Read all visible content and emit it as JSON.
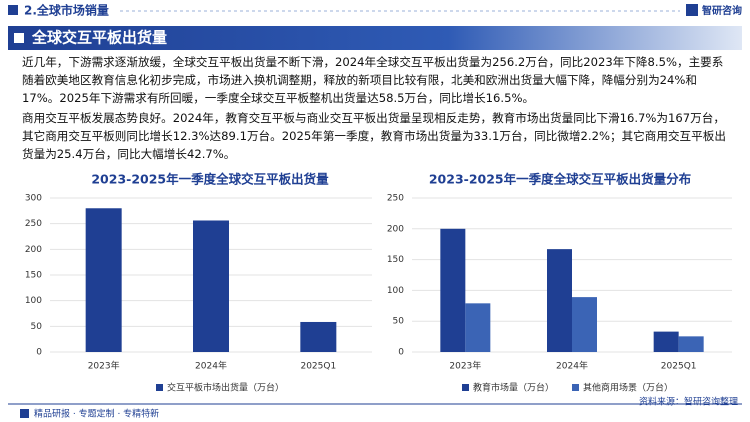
{
  "header": {
    "section": "2.全球市场销量",
    "logo": "智研咨询"
  },
  "banner": {
    "title": "全球交互平板出货量"
  },
  "paragraphs": [
    "近几年，下游需求逐渐放缓，全球交互平板出货量不断下滑，2024年全球交互平板出货量为256.2万台，同比2023年下降8.5%，主要系随着欧美地区教育信息化初步完成，市场进入换机调整期，释放的新项目比较有限，北美和欧洲出货量大幅下降，降幅分别为24%和17%。2025年下游需求有所回暖，一季度全球交互平板整机出货量达58.5万台，同比增长16.5%。",
    "商用交互平板发展态势良好。2024年，教育交互平板与商业交互平板出货量呈现相反走势，教育市场出货量同比下滑16.7%为167万台，其它商用交互平板则同比增长12.3%达89.1万台。2025年第一季度，教育市场出货量为33.1万台，同比微增2.2%；其它商用交互平板出货量为25.4万台，同比大幅增长42.7%。"
  ],
  "chart_data": [
    {
      "type": "bar",
      "title": "2023-2025年一季度全球交互平板出货量",
      "categories": [
        "2023年",
        "2024年",
        "2025Q1"
      ],
      "series": [
        {
          "name": "交互平板市场出货量（万台）",
          "color": "#1f3f93",
          "values": [
            280,
            256.2,
            58.5
          ]
        }
      ],
      "ylim": [
        0,
        300
      ],
      "yticks": [
        0,
        50,
        100,
        150,
        200,
        250,
        300
      ],
      "grid": true,
      "legend": "bottom"
    },
    {
      "type": "bar",
      "title": "2023-2025年一季度全球交互平板出货量分布",
      "categories": [
        "2023年",
        "2024年",
        "2025Q1"
      ],
      "series": [
        {
          "name": "教育市场量（万台）",
          "color": "#1f3f93",
          "values": [
            200,
            167,
            33.1
          ]
        },
        {
          "name": "其他商用场景（万台）",
          "color": "#3b64b5",
          "values": [
            79,
            89.1,
            25.4
          ]
        }
      ],
      "ylim": [
        0,
        250
      ],
      "yticks": [
        0,
        50,
        100,
        150,
        200,
        250
      ],
      "grid": true,
      "legend": "bottom"
    }
  ],
  "footer": {
    "left": "精品研报 · 专题定制 · 专精特新",
    "source": "资料来源：智研咨询整理"
  }
}
